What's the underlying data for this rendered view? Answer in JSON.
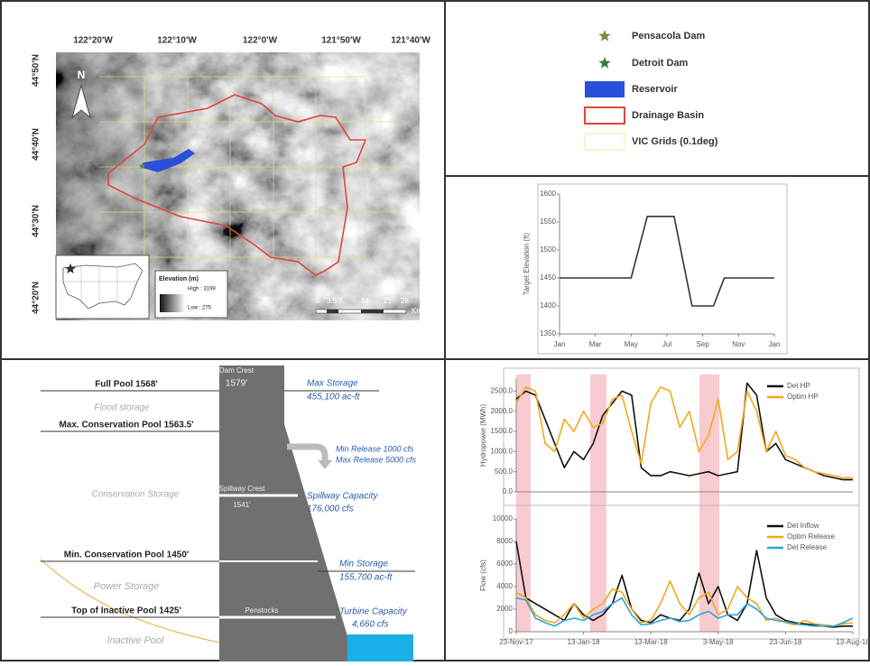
{
  "map": {
    "lon_labels": [
      "122°20'W",
      "122°10'W",
      "122°0'W",
      "121°50'W",
      "121°40'W"
    ],
    "lat_labels": [
      "44°50'N",
      "44°40'N",
      "44°30'N",
      "44°20'N"
    ],
    "north": "N",
    "elevation_title": "Elevation (m)",
    "elevation_high": "High : 3199",
    "elevation_low": "Low : 275",
    "scale_labels": [
      "0",
      "3.5",
      "7",
      "14",
      "21",
      "28"
    ],
    "scale_unit": "Km"
  },
  "legend": {
    "items": [
      "Pensacola Dam",
      "Detroit Dam",
      "Reservoir",
      "Drainage Basin",
      "VIC Grids (0.1deg)"
    ]
  },
  "dam_diagram": {
    "levels": [
      "Full Pool 1568'",
      "Max. Conservation Pool 1563.5'",
      "Min. Conservation Pool 1450'",
      "Top of Inactive Pool 1425'"
    ],
    "zones": [
      "Flood storage",
      "Conservation Storage",
      "Power Storage",
      "Inactive Pool"
    ],
    "dam_labels": [
      "Dam Crest",
      "1579'",
      "Spillway Crest",
      "1541'",
      "Penstocks"
    ],
    "capacities": [
      "Max Storage",
      "455,100 ac-ft",
      "Min Release 1000 cfs",
      "Max Release 5000 cfs",
      "Spillway Capacity",
      "176,000 cfs",
      "Min Storage",
      "155,700 ac-ft",
      "Turbine Capacity",
      "4,660 cfs"
    ]
  },
  "chart_data": [
    {
      "type": "line",
      "y_label": "Target Elevation (ft)",
      "x": [
        0,
        4,
        4.9,
        6.4,
        7.4,
        8.6,
        9.2,
        12
      ],
      "values": [
        1450,
        1450,
        1560,
        1560,
        1400,
        1400,
        1450,
        1450
      ],
      "color": "#333333",
      "xlim": [
        0,
        12
      ],
      "xticks": [
        {
          "value": 0,
          "label": "Jan"
        },
        {
          "value": 2,
          "label": "Mar"
        },
        {
          "value": 4,
          "label": "May"
        },
        {
          "value": 6,
          "label": "Jul"
        },
        {
          "value": 8,
          "label": "Sep"
        },
        {
          "value": 10,
          "label": "Nov"
        },
        {
          "value": 12,
          "label": "Jan"
        }
      ],
      "ylim": [
        1350,
        1600
      ],
      "yticks": [
        1350,
        1400,
        1450,
        1500,
        1550,
        1600
      ]
    },
    {
      "type": "line",
      "y_label": "Hydropower (MWh)",
      "legend": "upper right",
      "series": [
        {
          "name": "Det HP",
          "color": "#111111",
          "values": [
            2300,
            2500,
            2400,
            1800,
            1200,
            600,
            1000,
            800,
            1200,
            1900,
            2200,
            2500,
            2400,
            600,
            400,
            400,
            500,
            450,
            400,
            450,
            500,
            400,
            450,
            500,
            2700,
            2400,
            1000,
            1200,
            800,
            700,
            600,
            500,
            400,
            350,
            300,
            300
          ]
        },
        {
          "name": "Optim HP",
          "color": "#f2a81d",
          "values": [
            2200,
            2600,
            2500,
            1200,
            1000,
            1800,
            1500,
            2000,
            1600,
            1700,
            2300,
            2400,
            1500,
            700,
            2200,
            2600,
            2500,
            1600,
            2000,
            1000,
            1400,
            2300,
            800,
            1000,
            2500,
            2000,
            1000,
            1500,
            900,
            800,
            600,
            500,
            450,
            400,
            350,
            350
          ]
        }
      ],
      "ylim": [
        0,
        2800
      ],
      "yticks": [
        {
          "value": 0,
          "label": "0.0"
        },
        {
          "value": 500,
          "label": "500.0"
        },
        {
          "value": 1000,
          "label": "1000.0"
        },
        {
          "value": 1500,
          "label": "1500.0"
        },
        {
          "value": 2000,
          "label": "2000.0"
        },
        {
          "value": 2500,
          "label": "2500.0"
        }
      ]
    },
    {
      "type": "line",
      "y_label": "Flow (cfs)",
      "legend": "upper right",
      "categories": [
        "23-Nov-17",
        null,
        null,
        null,
        null,
        null,
        null,
        "13-Jan-18",
        null,
        null,
        null,
        null,
        null,
        null,
        "13-Mar-18",
        null,
        null,
        null,
        null,
        null,
        null,
        "3-May-18",
        null,
        null,
        null,
        null,
        null,
        null,
        "23-Jun-18",
        null,
        null,
        null,
        null,
        null,
        null,
        "13-Aug-18"
      ],
      "series": [
        {
          "name": "Det Inflow",
          "color": "#111111",
          "values": [
            8000,
            3000,
            2500,
            2000,
            1500,
            1000,
            2500,
            1500,
            1000,
            1500,
            2500,
            5000,
            2000,
            1000,
            800,
            1500,
            1200,
            1000,
            2000,
            5200,
            2500,
            4000,
            1500,
            1000,
            2500,
            7200,
            3000,
            1500,
            1000,
            800,
            700,
            600,
            500,
            400,
            500,
            500
          ]
        },
        {
          "name": "Optim Release",
          "color": "#f2a81d",
          "values": [
            3500,
            3000,
            1500,
            1000,
            800,
            1500,
            2500,
            1200,
            2000,
            2500,
            3800,
            3500,
            2000,
            800,
            1000,
            2500,
            4500,
            2500,
            1500,
            3000,
            3500,
            1500,
            2000,
            4000,
            3000,
            2500,
            1000,
            1200,
            800,
            600,
            1000,
            700,
            600,
            500,
            700,
            800
          ]
        },
        {
          "name": "Det Release",
          "color": "#2aa6dc",
          "values": [
            3000,
            2800,
            1200,
            800,
            500,
            1000,
            1200,
            1000,
            1500,
            1800,
            2500,
            3000,
            1500,
            600,
            700,
            1000,
            1200,
            900,
            1000,
            1500,
            1800,
            1200,
            1500,
            1500,
            2500,
            2000,
            1200,
            1000,
            900,
            700,
            600,
            500,
            500,
            500,
            800,
            1200
          ]
        }
      ],
      "ylim": [
        0,
        10000
      ],
      "yticks": [
        0,
        2000,
        4000,
        6000,
        8000,
        10000
      ]
    }
  ]
}
